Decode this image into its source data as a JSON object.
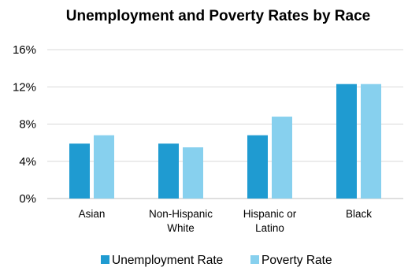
{
  "chart_data": {
    "type": "bar",
    "title": "Unemployment and Poverty Rates by Race",
    "xlabel": "",
    "ylabel": "",
    "categories": [
      [
        "Asian"
      ],
      [
        "Non-Hispanic",
        "White"
      ],
      [
        "Hispanic or",
        "Latino"
      ],
      [
        "Black"
      ]
    ],
    "series": [
      {
        "name": "Unemployment Rate",
        "color": "#1f9bd1",
        "values": [
          5.9,
          5.9,
          6.8,
          12.3
        ]
      },
      {
        "name": "Poverty Rate",
        "color": "#87d0ee",
        "values": [
          6.8,
          5.5,
          8.8,
          12.3
        ]
      }
    ],
    "yticks": [
      "0%",
      "4%",
      "8%",
      "12%",
      "16%"
    ],
    "ytick_values": [
      0,
      4,
      8,
      12,
      16
    ],
    "ylim": [
      0,
      16
    ],
    "grid": true,
    "legend_position": "bottom"
  }
}
